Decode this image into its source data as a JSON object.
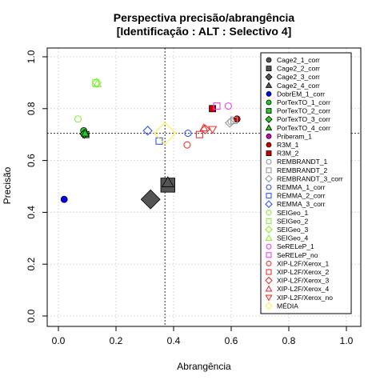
{
  "chart_data": {
    "type": "scatter",
    "title": "Perspectiva precisão/abrangência",
    "subtitle": "[Identificação : ALT : Selectivo 4]",
    "xlabel": "Abrangência",
    "ylabel": "Precisão",
    "xlim": [
      0.0,
      1.0
    ],
    "ylim": [
      0.0,
      1.0
    ],
    "xticks": [
      "0.0",
      "0.2",
      "0.4",
      "0.6",
      "0.8",
      "1.0"
    ],
    "yticks": [
      "0.0",
      "0.2",
      "0.4",
      "0.6",
      "0.8",
      "1.0"
    ],
    "grid": true,
    "reference_lines": {
      "x": 0.37,
      "y": 0.705
    },
    "legend_position": "right",
    "series": [
      {
        "name": "Cage2_1_corr",
        "shape": "circle-filled",
        "color": "#555555",
        "points": []
      },
      {
        "name": "Cage2_2_corr",
        "shape": "square-filled",
        "color": "#555555",
        "points": [
          {
            "x": 0.38,
            "y": 0.505,
            "size": 2.2
          }
        ]
      },
      {
        "name": "Cage2_3_corr",
        "shape": "diamond-filled",
        "color": "#555555",
        "points": [
          {
            "x": 0.32,
            "y": 0.45,
            "size": 2.2
          }
        ]
      },
      {
        "name": "Cage2_4_corr",
        "shape": "triangle-filled",
        "color": "#555555",
        "points": [
          {
            "x": 0.38,
            "y": 0.515,
            "size": 1.5
          }
        ]
      },
      {
        "name": "DobrEM_1_corr",
        "shape": "circle-filled",
        "color": "#0000ff",
        "points": [
          {
            "x": 0.02,
            "y": 0.45,
            "size": 1
          }
        ]
      },
      {
        "name": "PorTexTO_1_corr",
        "shape": "circle-filled",
        "color": "#22cc22",
        "points": [
          {
            "x": 0.088,
            "y": 0.715,
            "size": 1
          }
        ]
      },
      {
        "name": "PorTexTO_2_corr",
        "shape": "square-filled",
        "color": "#22cc22",
        "points": [
          {
            "x": 0.095,
            "y": 0.7,
            "size": 1
          }
        ]
      },
      {
        "name": "PorTexTO_3_corr",
        "shape": "diamond-filled",
        "color": "#22cc22",
        "points": [
          {
            "x": 0.09,
            "y": 0.702,
            "size": 1
          }
        ]
      },
      {
        "name": "PorTexTO_4_corr",
        "shape": "triangle-filled",
        "color": "#22cc22",
        "points": [
          {
            "x": 0.093,
            "y": 0.705,
            "size": 1
          }
        ]
      },
      {
        "name": "Priberam_1",
        "shape": "circle-filled",
        "color": "#cc00cc",
        "points": []
      },
      {
        "name": "R3M_1",
        "shape": "circle-filled",
        "color": "#cc0000",
        "points": [
          {
            "x": 0.62,
            "y": 0.76,
            "size": 1
          }
        ]
      },
      {
        "name": "R3M_2",
        "shape": "square-filled",
        "color": "#cc0000",
        "points": [
          {
            "x": 0.535,
            "y": 0.8,
            "size": 1
          }
        ]
      },
      {
        "name": "REMBRANDT_1",
        "shape": "circle-open",
        "color": "#999999",
        "points": [
          {
            "x": 0.6,
            "y": 0.75,
            "size": 1
          }
        ]
      },
      {
        "name": "REMBRANDT_2",
        "shape": "square-open",
        "color": "#999999",
        "points": [
          {
            "x": 0.61,
            "y": 0.755,
            "size": 1
          }
        ]
      },
      {
        "name": "REMBRANDT_3_corr",
        "shape": "diamond-open",
        "color": "#999999",
        "points": [
          {
            "x": 0.595,
            "y": 0.745,
            "size": 1
          }
        ]
      },
      {
        "name": "REMMA_1_corr",
        "shape": "circle-open",
        "color": "#3355ff",
        "points": [
          {
            "x": 0.45,
            "y": 0.705,
            "size": 1
          }
        ]
      },
      {
        "name": "REMMA_2_corr",
        "shape": "square-open",
        "color": "#3355ff",
        "points": [
          {
            "x": 0.35,
            "y": 0.675,
            "size": 1
          }
        ]
      },
      {
        "name": "REMMA_3_corr",
        "shape": "diamond-open",
        "color": "#3355ff",
        "points": [
          {
            "x": 0.31,
            "y": 0.715,
            "size": 1
          }
        ]
      },
      {
        "name": "SEIGeo_1",
        "shape": "circle-open",
        "color": "#88ee44",
        "points": [
          {
            "x": 0.068,
            "y": 0.76,
            "size": 1
          }
        ]
      },
      {
        "name": "SEIGeo_2",
        "shape": "square-open",
        "color": "#88ee44",
        "points": [
          {
            "x": 0.13,
            "y": 0.9,
            "size": 1
          }
        ]
      },
      {
        "name": "SEIGeo_3",
        "shape": "diamond-open",
        "color": "#88ee44",
        "points": [
          {
            "x": 0.133,
            "y": 0.9,
            "size": 1
          }
        ]
      },
      {
        "name": "SEIGeo_4",
        "shape": "triangle-open",
        "color": "#88ee44",
        "points": [
          {
            "x": 0.135,
            "y": 0.895,
            "size": 1
          }
        ]
      },
      {
        "name": "SeRELeP_1",
        "shape": "circle-open",
        "color": "#ee44ee",
        "points": [
          {
            "x": 0.59,
            "y": 0.81,
            "size": 1
          }
        ]
      },
      {
        "name": "SeRELeP_no",
        "shape": "square-open",
        "color": "#ee44ee",
        "points": [
          {
            "x": 0.55,
            "y": 0.81,
            "size": 1
          }
        ]
      },
      {
        "name": "XIP-L2F/Xerox_1",
        "shape": "circle-open",
        "color": "#ee3333",
        "points": [
          {
            "x": 0.447,
            "y": 0.66,
            "size": 1
          }
        ]
      },
      {
        "name": "XIP-L2F/Xerox_2",
        "shape": "square-open",
        "color": "#ee3333",
        "points": [
          {
            "x": 0.49,
            "y": 0.7,
            "size": 1
          }
        ]
      },
      {
        "name": "XIP-L2F/Xerox_3",
        "shape": "diamond-open",
        "color": "#ee3333",
        "points": [
          {
            "x": 0.51,
            "y": 0.72,
            "size": 1
          }
        ]
      },
      {
        "name": "XIP-L2F/Xerox_4",
        "shape": "triangle-open",
        "color": "#ee3333",
        "points": [
          {
            "x": 0.505,
            "y": 0.725,
            "size": 1
          }
        ]
      },
      {
        "name": "XIP-L2F/Xerox_no",
        "shape": "triangle-down-open",
        "color": "#ee3333",
        "points": [
          {
            "x": 0.535,
            "y": 0.72,
            "size": 1
          }
        ]
      },
      {
        "name": "MÉDIA",
        "shape": "diamond-open",
        "color": "#ffee44",
        "points": [
          {
            "x": 0.37,
            "y": 0.705,
            "size": 2.5
          }
        ]
      }
    ]
  }
}
